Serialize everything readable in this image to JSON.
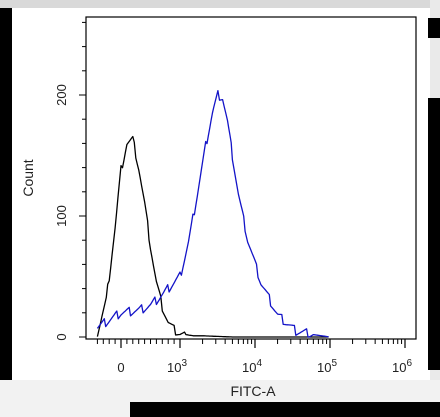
{
  "chart_data": {
    "type": "line",
    "title": "",
    "xlabel": "FITC-A",
    "ylabel": "Count",
    "x_scale": "logicle",
    "x_ticks": [
      {
        "value": 0,
        "label": "0",
        "exp": ""
      },
      {
        "value": 1000,
        "label": "10",
        "exp": "3"
      },
      {
        "value": 10000,
        "label": "10",
        "exp": "4"
      },
      {
        "value": 100000,
        "label": "10",
        "exp": "5"
      },
      {
        "value": 1000000,
        "label": "10",
        "exp": "6"
      }
    ],
    "y_ticks": [
      {
        "value": 0,
        "label": "0"
      },
      {
        "value": 100,
        "label": "100"
      },
      {
        "value": 200,
        "label": "200"
      }
    ],
    "ylim": [
      0,
      265
    ],
    "series": [
      {
        "color": "#000000",
        "x": [
          -400,
          -250,
          -100,
          0,
          100,
          200,
          300,
          400,
          500,
          600,
          700,
          800,
          900,
          1000,
          1200,
          1500,
          2000,
          5000,
          100000
        ],
        "y": [
          3,
          30,
          90,
          138,
          160,
          163,
          140,
          110,
          75,
          45,
          25,
          12,
          6,
          3,
          2,
          1,
          1,
          0,
          0
        ]
      },
      {
        "color": "#1414c8",
        "x": [
          -400,
          0,
          300,
          500,
          700,
          1000,
          1300,
          1700,
          2200,
          2700,
          3200,
          3700,
          4300,
          5000,
          6000,
          8000,
          12000,
          20000,
          35000,
          60000,
          100000
        ],
        "y": [
          8,
          20,
          22,
          26,
          35,
          50,
          78,
          118,
          158,
          185,
          200,
          198,
          178,
          150,
          118,
          80,
          45,
          18,
          5,
          2,
          0
        ]
      }
    ]
  }
}
